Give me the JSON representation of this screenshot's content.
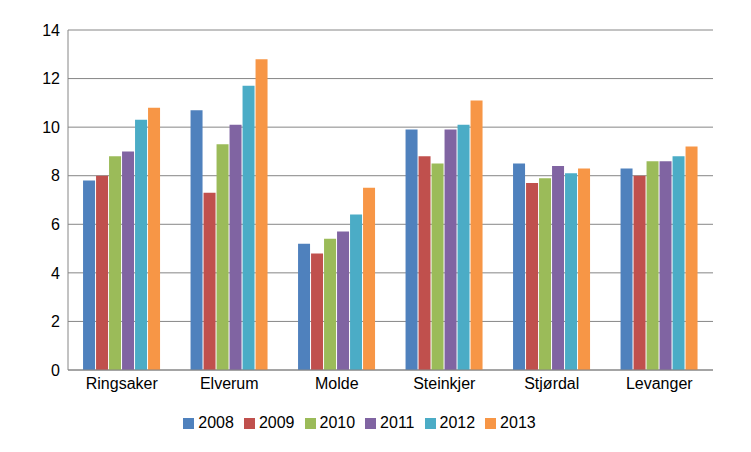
{
  "chart_data": {
    "type": "bar",
    "categories": [
      "Ringsaker",
      "Elverum",
      "Molde",
      "Steinkjer",
      "Stjørdal",
      "Levanger"
    ],
    "series": [
      {
        "name": "2008",
        "color": "#4F81BD",
        "values": [
          7.8,
          10.7,
          5.2,
          9.9,
          8.5,
          8.3
        ]
      },
      {
        "name": "2009",
        "color": "#C0504D",
        "values": [
          8.0,
          7.3,
          4.8,
          8.8,
          7.7,
          8.0
        ]
      },
      {
        "name": "2010",
        "color": "#9BBB59",
        "values": [
          8.8,
          9.3,
          5.4,
          8.5,
          7.9,
          8.6
        ]
      },
      {
        "name": "2011",
        "color": "#8064A2",
        "values": [
          9.0,
          10.1,
          5.7,
          9.9,
          8.4,
          8.6
        ]
      },
      {
        "name": "2012",
        "color": "#4BACC6",
        "values": [
          10.3,
          11.7,
          6.4,
          10.1,
          8.1,
          8.8
        ]
      },
      {
        "name": "2013",
        "color": "#F79646",
        "values": [
          10.8,
          12.8,
          7.5,
          11.1,
          8.3,
          9.2
        ]
      }
    ],
    "ylim": [
      0,
      14
    ],
    "yticks": [
      0,
      2,
      4,
      6,
      8,
      10,
      12,
      14
    ],
    "grid": true,
    "legend": "bottom"
  }
}
